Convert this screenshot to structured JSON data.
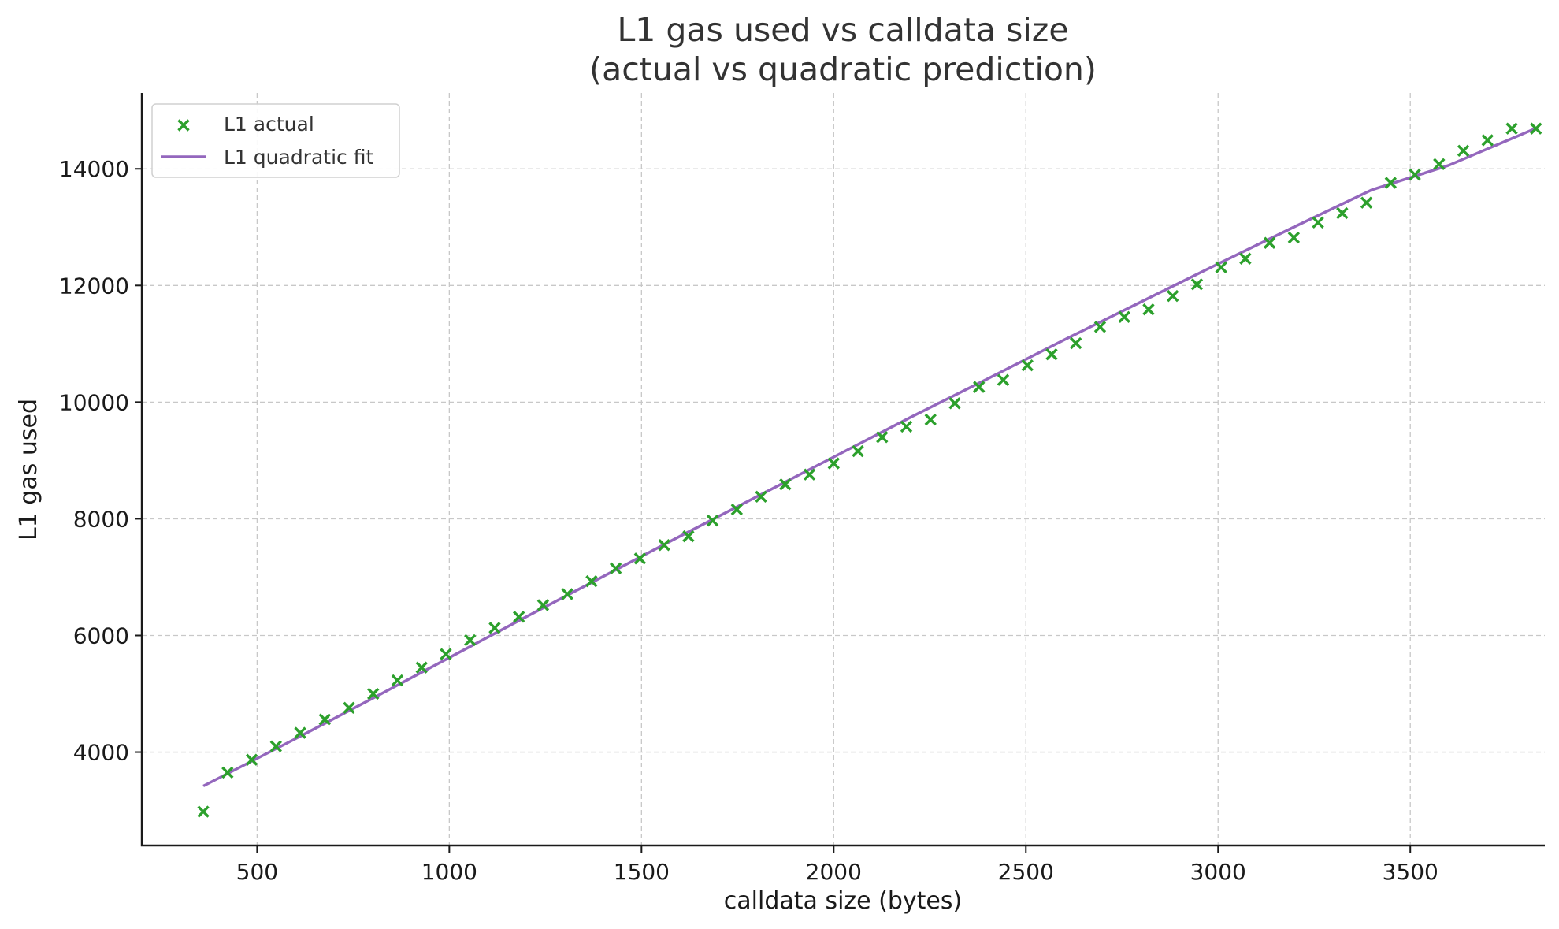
{
  "chart_data": {
    "type": "scatter",
    "title_lines": [
      "L1 gas used vs calldata size",
      "(actual vs quadratic prediction)"
    ],
    "xlabel": "calldata size (bytes)",
    "ylabel": "L1 gas used",
    "xlim": [
      200,
      3850
    ],
    "ylim": [
      2400,
      15300
    ],
    "x_ticks": [
      500,
      1000,
      1500,
      2000,
      2500,
      3000,
      3500
    ],
    "y_ticks": [
      4000,
      6000,
      8000,
      10000,
      12000,
      14000
    ],
    "grid": true,
    "legend_position": "top-left",
    "colors": {
      "actual": "#2ca02c",
      "fit": "#9467bd"
    },
    "series": [
      {
        "name": "L1 actual",
        "marker": "x",
        "x": [
          360,
          423,
          486,
          549,
          612,
          676,
          739,
          802,
          865,
          928,
          991,
          1054,
          1118,
          1181,
          1244,
          1307,
          1370,
          1433,
          1496,
          1559,
          1622,
          1685,
          1748,
          1811,
          1874,
          1937,
          2000,
          2063,
          2126,
          2189,
          2252,
          2315,
          2378,
          2441,
          2504,
          2567,
          2630,
          2693,
          2756,
          2819,
          2882,
          2945,
          3008,
          3071,
          3134,
          3197,
          3260,
          3323,
          3386,
          3449,
          3512,
          3575,
          3638,
          3701,
          3764,
          3827
        ],
        "y": [
          2980,
          3650,
          3870,
          4100,
          4330,
          4560,
          4760,
          5000,
          5230,
          5450,
          5680,
          5920,
          6130,
          6320,
          6520,
          6710,
          6930,
          7150,
          7320,
          7550,
          7700,
          7970,
          8160,
          8380,
          8590,
          8760,
          8950,
          9160,
          9400,
          9580,
          9700,
          9980,
          10260,
          10380,
          10630,
          10820,
          11010,
          11290,
          11460,
          11590,
          11820,
          12020,
          12310,
          12460,
          12730,
          12820,
          13080,
          13240,
          13420,
          13760,
          13900,
          14080,
          14310,
          14490,
          14690,
          14690
        ]
      },
      {
        "name": "L1 quadratic fit",
        "marker": "line",
        "x": [
          360,
          600,
          800,
          1000,
          1200,
          1400,
          1600,
          1800,
          2000,
          2200,
          2400,
          2600,
          2800,
          3000,
          3200,
          3400,
          3600,
          3825
        ],
        "y": [
          3420,
          4230,
          4920,
          5620,
          6320,
          7010,
          7700,
          8380,
          9060,
          9740,
          10400,
          11070,
          11720,
          12370,
          13010,
          13640,
          14060,
          14690
        ]
      }
    ]
  }
}
